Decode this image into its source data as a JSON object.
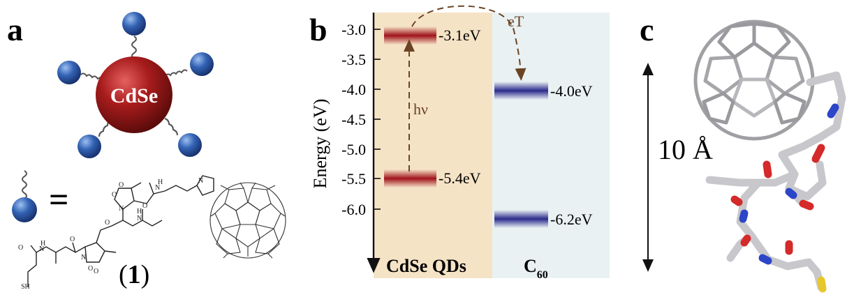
{
  "panels": {
    "a": {
      "letter": "a",
      "core_label": "CdSe",
      "equals_sign": "=",
      "sulfur_label": "SH",
      "compound_label": "(1)"
    },
    "b": {
      "letter": "b",
      "y_axis_label": "Energy (eV)",
      "y_ticks": [
        "-3.0",
        "-3.5",
        "-4.0",
        "-4.5",
        "-5.0",
        "-5.5",
        "-6.0"
      ],
      "cdse_levels": [
        "-3.1eV",
        "-5.4eV"
      ],
      "c60_levels": [
        "-4.0eV",
        "-6.2eV"
      ],
      "excitation_label": "hν",
      "transfer_label": "eT",
      "cdse_column_label": "CdSe QDs",
      "c60_column_label": "C",
      "c60_subscript": "60"
    },
    "c": {
      "letter": "c",
      "scale_label": "10 Å"
    }
  },
  "colors": {
    "cdse_band": "#f5e3c6",
    "c60_band": "#e9f1f3",
    "cdse_level": "#a0141b",
    "c60_level": "#2b2a8c",
    "arrow": "#6b4423",
    "core": "#9b1b1b",
    "ligand_ball": "#2f5aa8",
    "oxygen": "#d42a2a",
    "nitrogen": "#2d46c8",
    "sulfur": "#e6c82a",
    "carbon": "#c8c8cc"
  }
}
